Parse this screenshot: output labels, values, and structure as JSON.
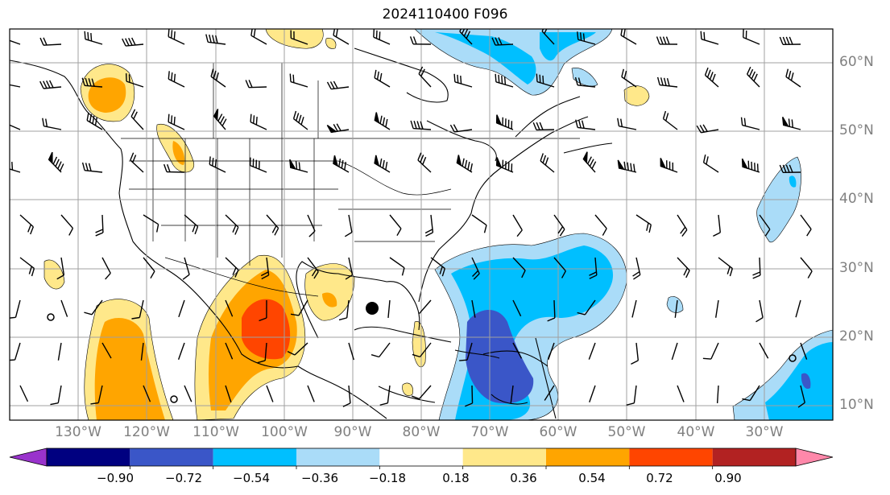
{
  "title": "2024110400 F096",
  "lat_labels": [
    "60°N",
    "50°N",
    "40°N",
    "30°N",
    "20°N",
    "10°N"
  ],
  "lon_labels": [
    "130°W",
    "120°W",
    "110°W",
    "100°W",
    "90°W",
    "80°W",
    "70°W",
    "60°W",
    "50°W",
    "40°W",
    "30°W"
  ],
  "colorbar": {
    "ticks": [
      "−0.90",
      "−0.72",
      "−0.54",
      "−0.36",
      "−0.18",
      "0.18",
      "0.36",
      "0.54",
      "0.72",
      "0.90"
    ],
    "colors": [
      "#9933cc",
      "#000080",
      "#3a56c8",
      "#00bfff",
      "#aadcf8",
      "#ffffff",
      "#ffe88a",
      "#ffa500",
      "#ff4500",
      "#b22222",
      "#ff88aa"
    ]
  },
  "map_data": {
    "type": "contour-map",
    "extent": {
      "lon": [
        -138,
        -17
      ],
      "lat": [
        7.5,
        65
      ]
    },
    "gridlines": true,
    "symbols": [
      "wind-barbs",
      "cyclone-marker"
    ]
  }
}
